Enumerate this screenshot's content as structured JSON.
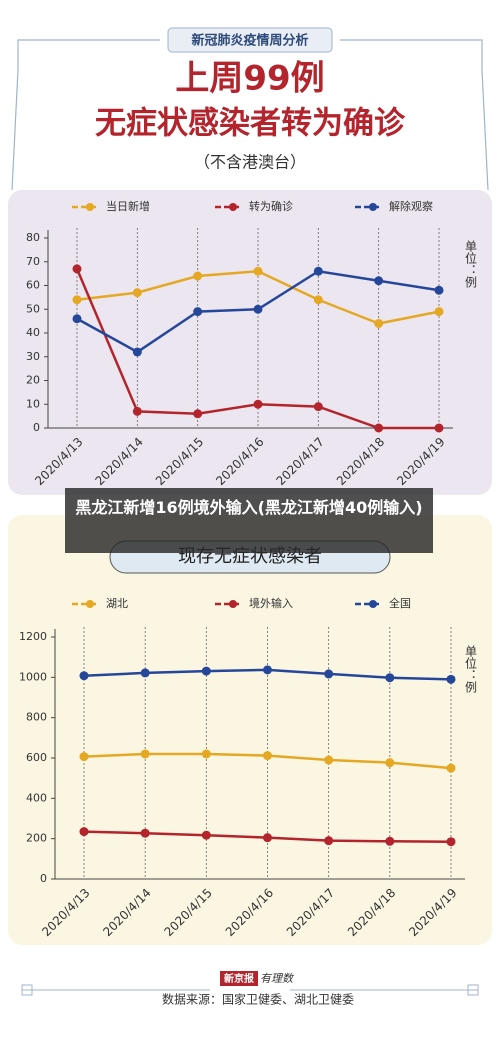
{
  "header": {
    "tag": "新冠肺炎疫情周分析",
    "headline": "上周99例",
    "subhead": "无症状感染者转为确诊",
    "note": "（不含港澳台）"
  },
  "caption": "黑龙江新增16例境外输入(黑龙江新增40例输入)",
  "footer": {
    "brand": "新京报",
    "brand2": "有理数",
    "source": "数据来源：国家卫健委、湖北卫健委"
  },
  "chart_data": [
    {
      "type": "line",
      "unit": "单位：例",
      "categories": [
        "2020/4/13",
        "2020/4/14",
        "2020/4/15",
        "2020/4/16",
        "2020/4/17",
        "2020/4/18",
        "2020/4/19"
      ],
      "series": [
        {
          "name": "当日新增",
          "color": "#e5a823",
          "values": [
            54,
            57,
            64,
            66,
            54,
            44,
            49
          ]
        },
        {
          "name": "转为确诊",
          "color": "#b3242c",
          "values": [
            67,
            7,
            6,
            10,
            9,
            0,
            0
          ]
        },
        {
          "name": "解除观察",
          "color": "#25479a",
          "values": [
            46,
            32,
            49,
            50,
            66,
            62,
            58
          ]
        }
      ],
      "ylim": [
        0,
        80
      ],
      "yticks": [
        0,
        10,
        20,
        30,
        40,
        50,
        60,
        70,
        80
      ]
    },
    {
      "type": "line",
      "title": "现存无症状感染者",
      "unit": "单位：例",
      "categories": [
        "2020/4/13",
        "2020/4/14",
        "2020/4/15",
        "2020/4/16",
        "2020/4/17",
        "2020/4/18",
        "2020/4/19"
      ],
      "series": [
        {
          "name": "湖北",
          "color": "#e5a823",
          "values": [
            607,
            620,
            620,
            612,
            590,
            577,
            550
          ]
        },
        {
          "name": "境外输入",
          "color": "#b3242c",
          "values": [
            235,
            227,
            217,
            205,
            190,
            187,
            185
          ]
        },
        {
          "name": "全国",
          "color": "#25479a",
          "values": [
            1008,
            1022,
            1031,
            1037,
            1017,
            998,
            990
          ]
        }
      ],
      "ylim": [
        0,
        1200
      ],
      "yticks": [
        0,
        200,
        400,
        600,
        800,
        1000,
        1200
      ]
    }
  ]
}
